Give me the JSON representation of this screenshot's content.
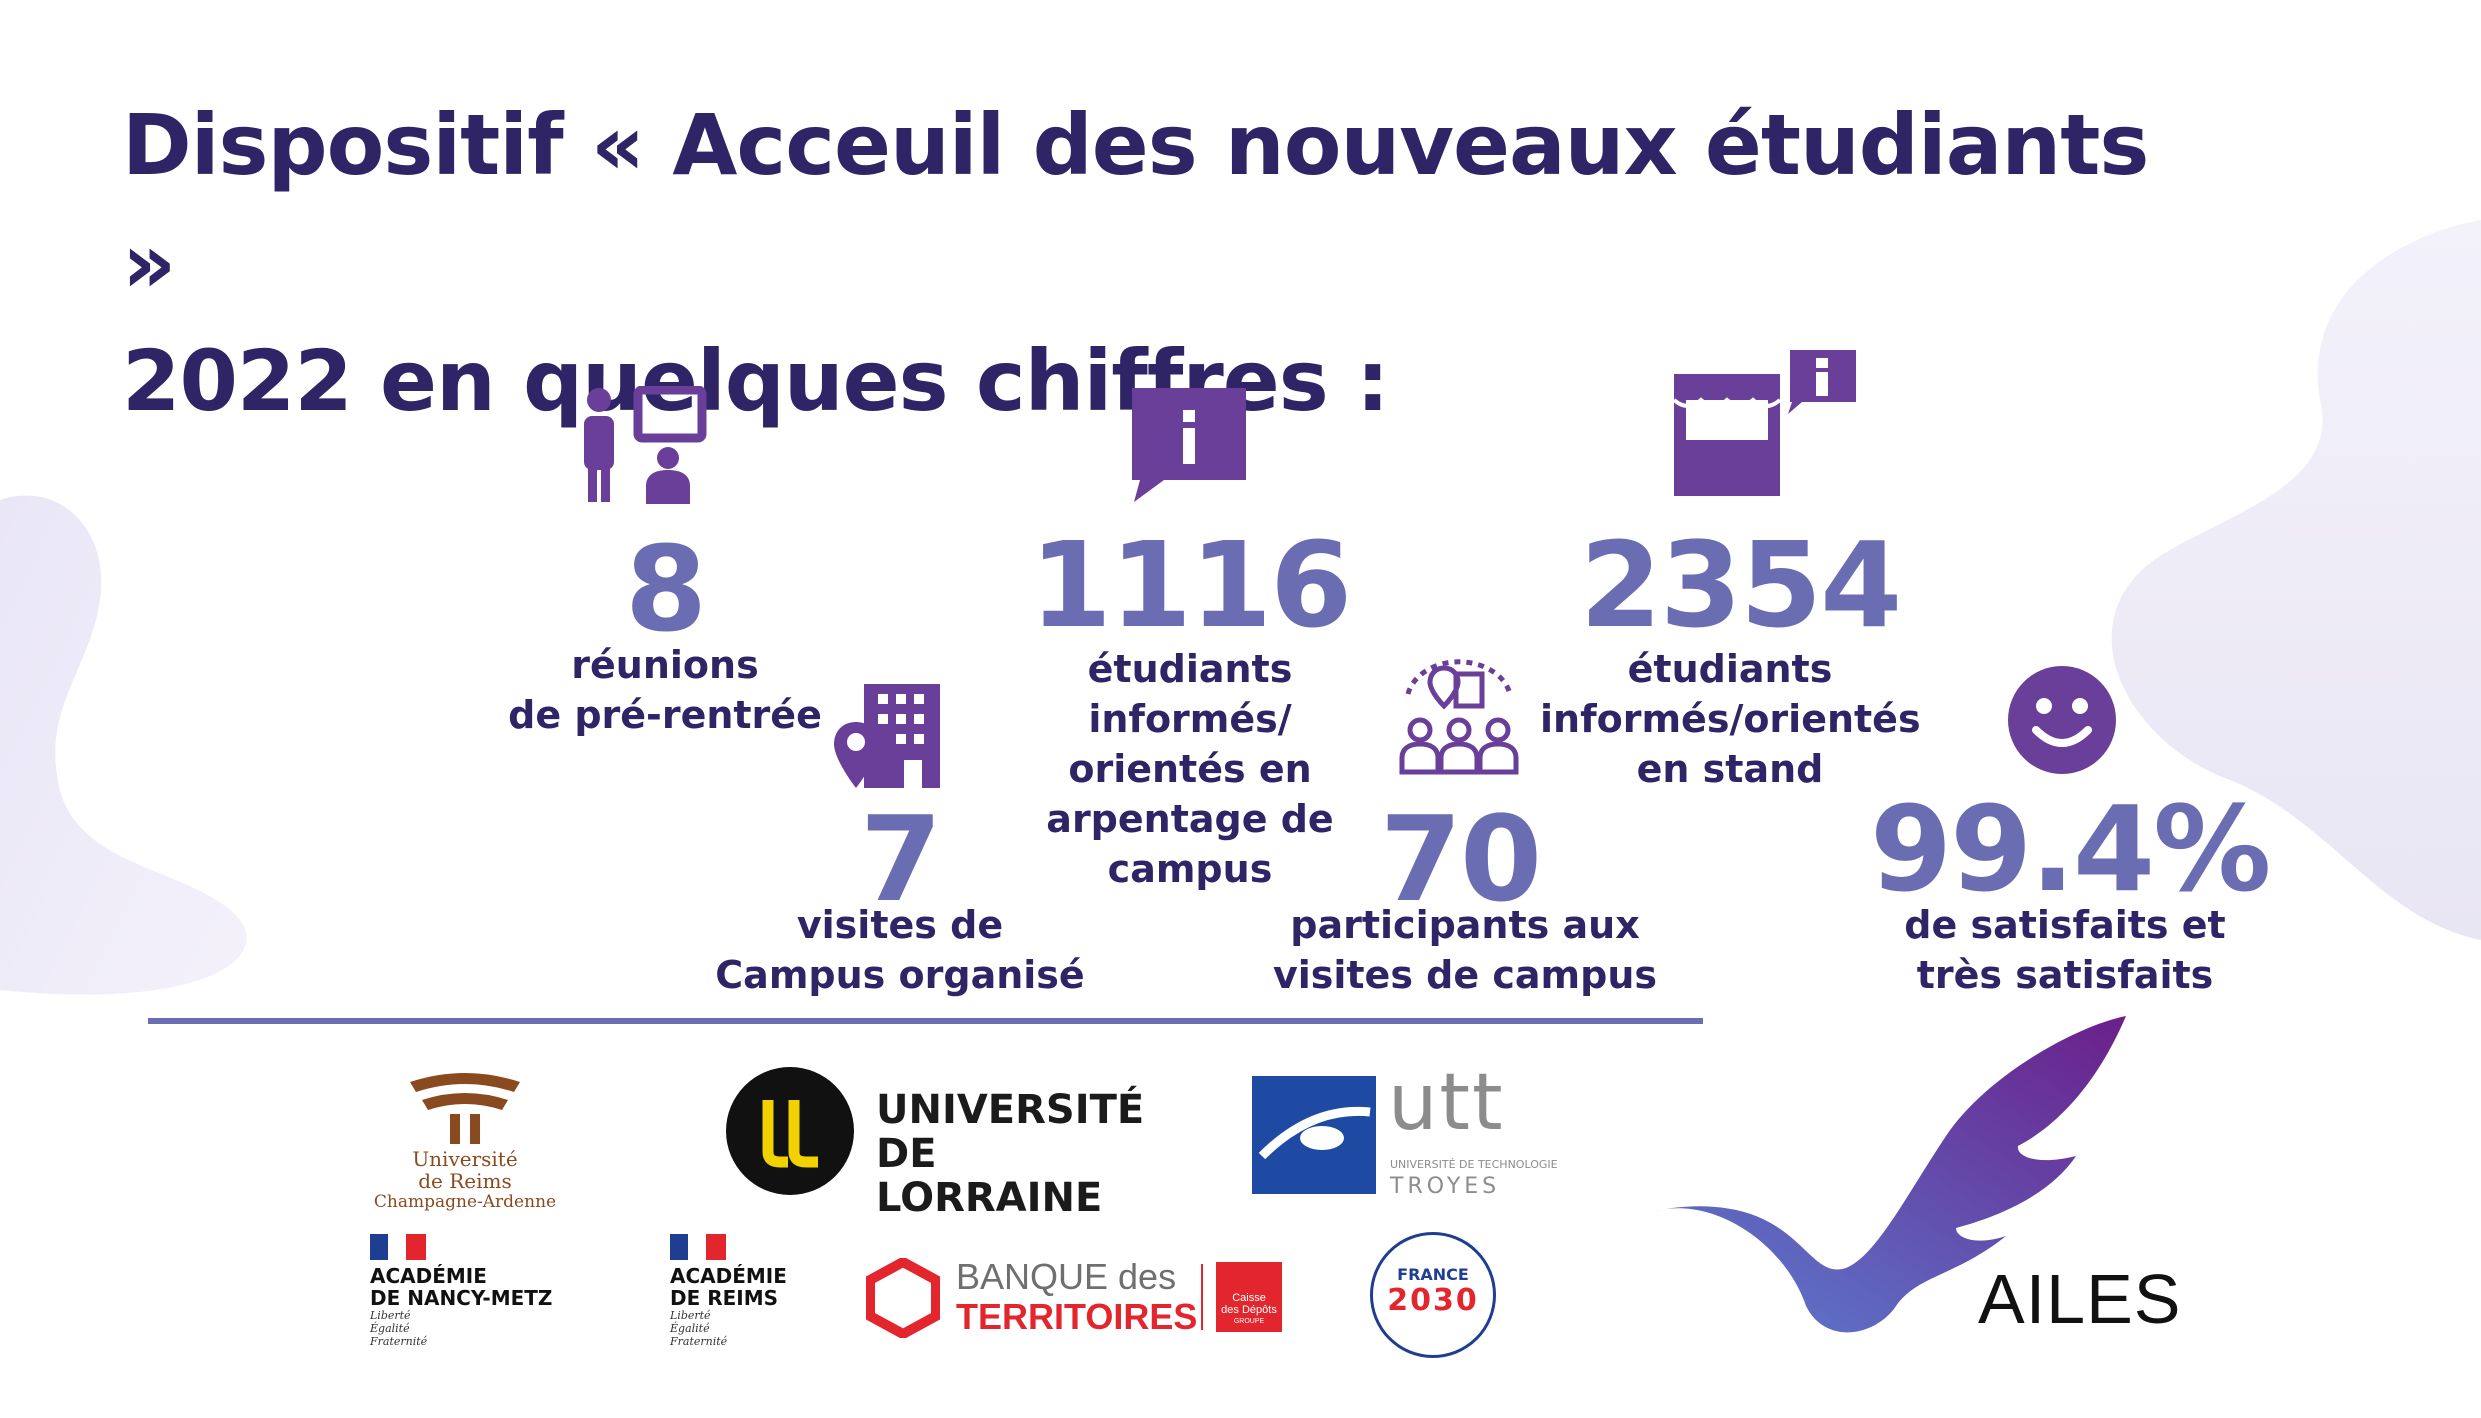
{
  "title": {
    "line1": "Dispositif « Acceuil des nouveaux étudiants »",
    "line2": "2022 en quelques chiffres :"
  },
  "stats": {
    "reunions": {
      "value": "8",
      "label": "réunions\nde pré-rentrée",
      "icon": "presenter-icon"
    },
    "arpentage": {
      "value": "1116",
      "label": "étudiants informés/\norientés en\narpentage de\ncampus",
      "icon": "info-bubble-icon"
    },
    "stand": {
      "value": "2354",
      "label": "étudiants\ninformés/orientés\nen stand",
      "icon": "market-stand-icon"
    },
    "visites": {
      "value": "7",
      "label": "visites de\nCampus organisé",
      "icon": "building-location-icon"
    },
    "participants": {
      "value": "70",
      "label": "participants aux\nvisites de campus",
      "icon": "group-location-icon"
    },
    "satisfaction": {
      "value": "99.4%",
      "label": "de satisfaits et\ntrès satisfaits",
      "icon": "smiley-icon"
    }
  },
  "logos": {
    "urca": {
      "line1": "Université",
      "line2": "de Reims",
      "line3": "Champagne-Ardenne"
    },
    "lorraine": {
      "line1": "UNIVERSITÉ",
      "line2": "DE LORRAINE"
    },
    "utt": {
      "name": "utt",
      "line1": "UNIVERSITÉ DE TECHNOLOGIE",
      "line2": "TROYES"
    },
    "academie_nancy": {
      "line1": "ACADÉMIE",
      "line2": "DE NANCY-METZ",
      "motto1": "Liberté",
      "motto2": "Égalité",
      "motto3": "Fraternité"
    },
    "academie_reims": {
      "line1": "ACADÉMIE",
      "line2": "DE REIMS",
      "motto1": "Liberté",
      "motto2": "Égalité",
      "motto3": "Fraternité"
    },
    "banque": {
      "line1": "BANQUE des",
      "line2": "TERRITOIRES",
      "cdc1": "Caisse",
      "cdc2": "des Dépôts",
      "cdc3": "GROUPE"
    },
    "france2030": {
      "line1": "FRANCE",
      "line2": "2030"
    },
    "ailes": {
      "name": "AILES"
    }
  },
  "colors": {
    "title": "#2f2466",
    "number": "#6b6db2",
    "icon": "#6a3f99",
    "accent_red": "#e3262d"
  }
}
